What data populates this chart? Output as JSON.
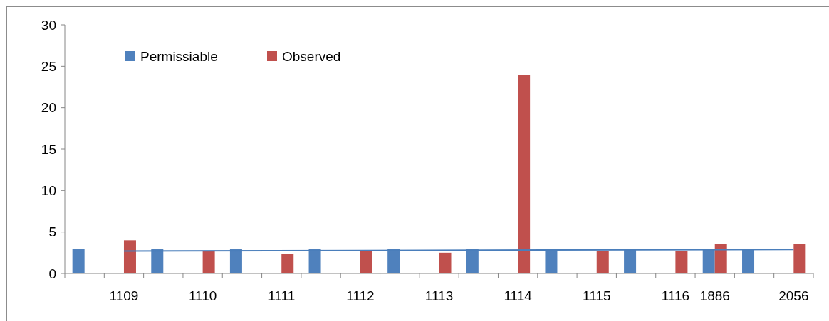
{
  "chart_data": {
    "type": "bar",
    "categories": [
      null,
      "1109",
      null,
      "1110",
      null,
      "1111",
      null,
      "1112",
      null,
      "1113",
      null,
      "1114",
      null,
      "1115",
      null,
      "1116",
      "1886",
      null,
      "2056"
    ],
    "series": [
      {
        "name": "Permissiable",
        "color": "#4f81bd",
        "values": [
          3,
          null,
          3,
          null,
          3,
          null,
          3,
          null,
          3,
          null,
          3,
          null,
          3,
          null,
          3,
          null,
          3,
          3,
          null
        ]
      },
      {
        "name": "Observed",
        "color": "#c0504d",
        "values": [
          null,
          4,
          null,
          2.7,
          null,
          2.4,
          null,
          2.8,
          null,
          2.5,
          null,
          24,
          null,
          2.7,
          null,
          2.7,
          3.6,
          null,
          3.6
        ]
      },
      {
        "type": "line",
        "color": "#4a7ebb",
        "values": [
          null,
          2.7,
          null,
          null,
          null,
          null,
          null,
          null,
          null,
          null,
          null,
          null,
          null,
          null,
          null,
          null,
          null,
          null,
          2.9
        ]
      }
    ],
    "ylim": [
      0,
      30
    ],
    "yticks": [
      0,
      5,
      10,
      15,
      20,
      25,
      30
    ],
    "grid": false,
    "legend": "top left"
  }
}
